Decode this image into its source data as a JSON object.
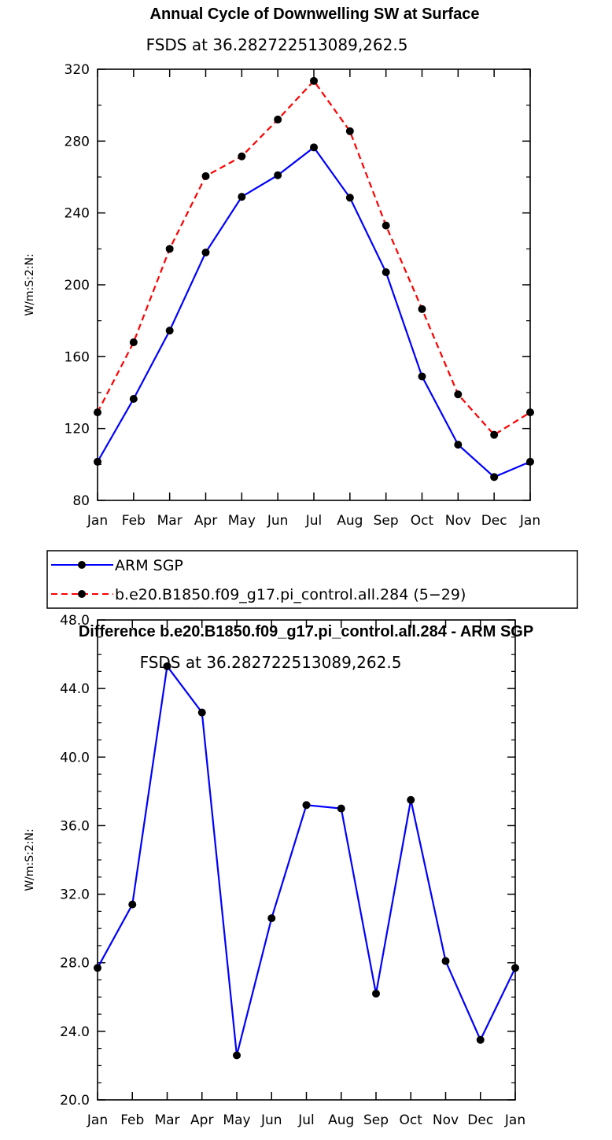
{
  "chart_data": [
    {
      "type": "line",
      "title": "Annual Cycle of Downwelling SW at Surface",
      "subtitle": "FSDS at 36.282722513089,262.5",
      "ylabel": "W/m:S:2:N:",
      "xlabel": "",
      "categories": [
        "Jan",
        "Feb",
        "Mar",
        "Apr",
        "May",
        "Jun",
        "Jul",
        "Aug",
        "Sep",
        "Oct",
        "Nov",
        "Dec",
        "Jan"
      ],
      "ylim": [
        80,
        320
      ],
      "yticks": [
        "80",
        "120",
        "160",
        "200",
        "240",
        "280",
        "320"
      ],
      "series": [
        {
          "name": "ARM SGP",
          "color": "#0000ff",
          "dash": "solid",
          "values": [
            101.5,
            136.5,
            174.5,
            218,
            249,
            261,
            276.5,
            248.5,
            207,
            149,
            111,
            93,
            101.5
          ]
        },
        {
          "name": "b.e20.B1850.f09_g17.pi_control.all.284 (5−29)",
          "color": "#ff0000",
          "dash": "dashed",
          "values": [
            129,
            168,
            220,
            260.5,
            271.5,
            292,
            313.5,
            285.5,
            233,
            186.5,
            139,
            116.5,
            129
          ]
        }
      ],
      "legend_position": "below"
    },
    {
      "type": "line",
      "title": "Difference b.e20.B1850.f09_g17.pi_control.all.284 - ARM SGP",
      "subtitle": "FSDS at 36.282722513089,262.5",
      "ylabel": "W/m:S:2:N:",
      "xlabel": "",
      "categories": [
        "Jan",
        "Feb",
        "Mar",
        "Apr",
        "May",
        "Jun",
        "Jul",
        "Aug",
        "Sep",
        "Oct",
        "Nov",
        "Dec",
        "Jan"
      ],
      "ylim": [
        20,
        48
      ],
      "yticks": [
        "20.0",
        "24.0",
        "28.0",
        "32.0",
        "36.0",
        "40.0",
        "44.0",
        "48.0"
      ],
      "series": [
        {
          "name": "",
          "color": "#0000ff",
          "dash": "solid",
          "values": [
            27.7,
            31.4,
            45.3,
            42.6,
            22.6,
            30.6,
            37.2,
            37.0,
            26.2,
            37.5,
            28.1,
            23.5,
            27.7
          ]
        }
      ]
    }
  ]
}
